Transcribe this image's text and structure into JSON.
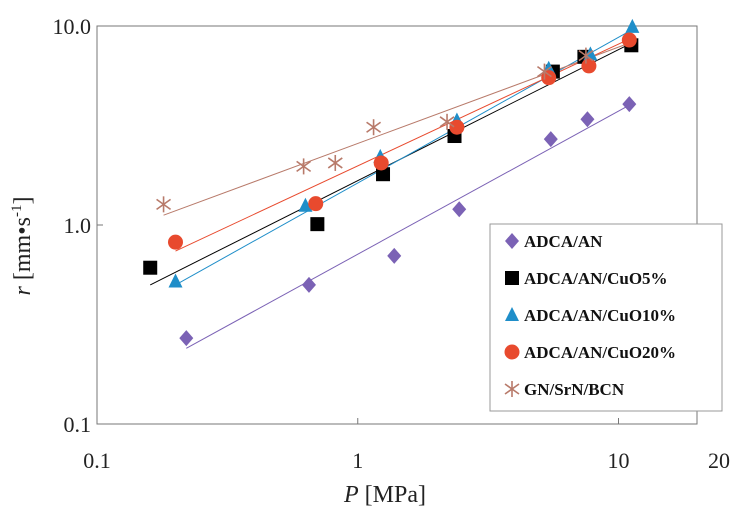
{
  "chart_data": {
    "type": "scatter",
    "x_scale": "log",
    "y_scale": "log",
    "xlim": [
      0.1,
      20
    ],
    "ylim": [
      0.1,
      10
    ],
    "x_ticks": [
      {
        "value": 0.1,
        "label": "0.1"
      },
      {
        "value": 1,
        "label": "1"
      },
      {
        "value": 10,
        "label": "10"
      },
      {
        "value": 20,
        "label": "20"
      }
    ],
    "y_ticks": [
      {
        "value": 0.1,
        "label": "0.1"
      },
      {
        "value": 1,
        "label": "1.0"
      },
      {
        "value": 10,
        "label": "10.0"
      }
    ],
    "xlabel": {
      "var": "P",
      "unit": " [MPa]"
    },
    "ylabel": {
      "var": "r",
      "unit_main": " [mm•s",
      "unit_sup": "-1",
      "unit_end": "]"
    },
    "grid": false,
    "legend_position": "bottom-right",
    "series": [
      {
        "name": "ADCA/AN",
        "marker": "diamond",
        "color": "#7b62b5",
        "x": [
          0.22,
          0.65,
          1.38,
          2.45,
          5.5,
          7.6,
          11.0
        ],
        "y": [
          0.27,
          0.5,
          0.7,
          1.2,
          2.7,
          3.4,
          4.05
        ],
        "fit": {
          "x": [
            0.22,
            11.0
          ],
          "y": [
            0.24,
            4.0
          ]
        }
      },
      {
        "name": "ADCA/AN/CuO5%",
        "marker": "square",
        "color": "#000000",
        "x": [
          0.16,
          0.7,
          1.25,
          2.35,
          5.6,
          7.4,
          11.2
        ],
        "y": [
          0.61,
          1.01,
          1.8,
          2.8,
          5.9,
          7.0,
          8.0
        ],
        "fit": {
          "x": [
            0.16,
            11.2
          ],
          "y": [
            0.5,
            8.2
          ]
        }
      },
      {
        "name": "ADCA/AN/CuO10%",
        "marker": "triangle",
        "color": "#1f8ec9",
        "x": [
          0.2,
          0.63,
          1.22,
          2.4,
          5.4,
          7.8,
          11.3
        ],
        "y": [
          0.52,
          1.25,
          2.2,
          3.35,
          6.1,
          7.2,
          9.9
        ],
        "fit": {
          "x": [
            0.2,
            11.3
          ],
          "y": [
            0.5,
            9.6
          ]
        }
      },
      {
        "name": "ADCA/AN/CuO20%",
        "marker": "circle",
        "color": "#e84a2e",
        "x": [
          0.2,
          0.69,
          1.23,
          2.4,
          5.4,
          7.7,
          11.0
        ],
        "y": [
          0.82,
          1.28,
          2.05,
          3.1,
          5.5,
          6.3,
          8.5
        ],
        "fit": {
          "x": [
            0.2,
            11.0
          ],
          "y": [
            0.74,
            8.6
          ]
        }
      },
      {
        "name": "GN/SrN/BCN",
        "marker": "asterisk",
        "color": "#b87a6a",
        "x": [
          0.18,
          0.62,
          0.82,
          1.15,
          2.2,
          5.2,
          7.5
        ],
        "y": [
          1.27,
          1.97,
          2.05,
          3.1,
          3.3,
          5.9,
          7.1
        ],
        "fit": {
          "x": [
            0.18,
            11.0
          ],
          "y": [
            1.12,
            8.2
          ]
        }
      }
    ]
  }
}
